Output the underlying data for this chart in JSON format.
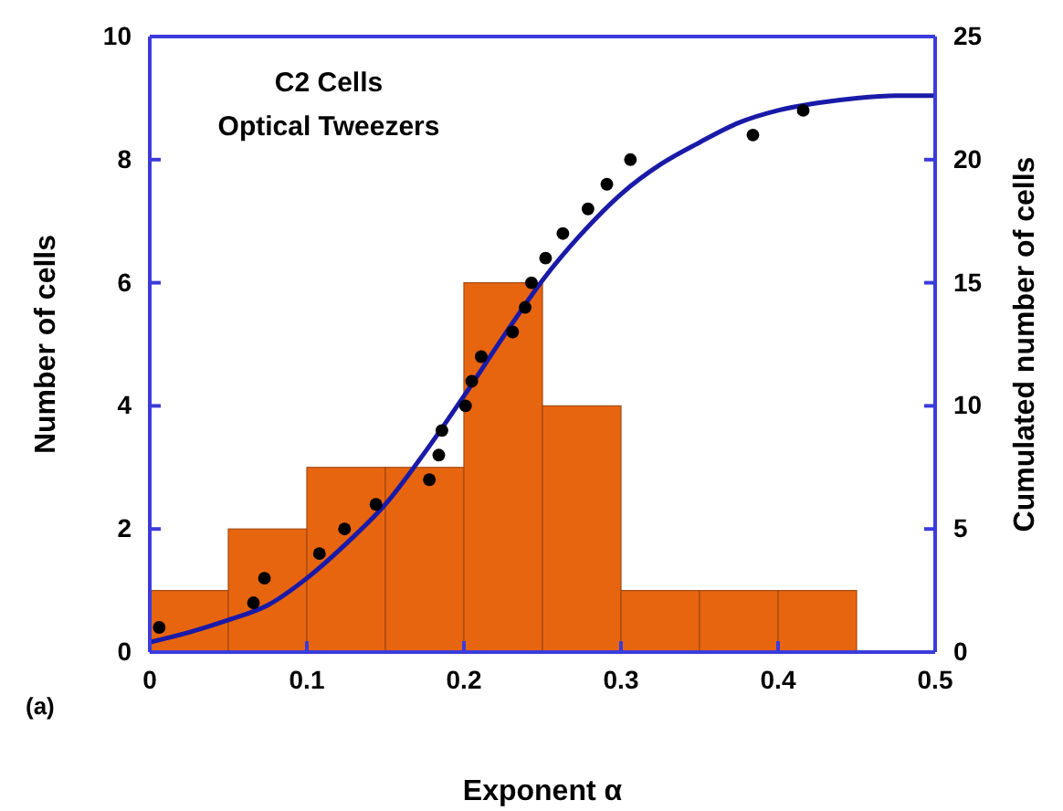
{
  "chart_data": {
    "type": "histogram",
    "xlabel": "Exponent α",
    "ylabel": "Number of cells",
    "y2label": "Cumulated number of cells",
    "annotations": [
      "C2 Cells",
      "Optical Tweezers",
      "(a)"
    ],
    "xlim": [
      0,
      0.5
    ],
    "xticks": [
      0,
      0.1,
      0.2,
      0.3,
      0.4,
      0.5
    ],
    "ylim": [
      0,
      10
    ],
    "yticks": [
      0,
      2,
      4,
      6,
      8,
      10
    ],
    "y2lim": [
      0,
      25
    ],
    "y2ticks": [
      0,
      5,
      10,
      15,
      20,
      25
    ],
    "series": [
      {
        "color": "#e8650f",
        "bins": [
          0,
          0.05,
          0.1,
          0.15,
          0.2,
          0.25,
          0.3,
          0.35,
          0.4,
          0.45
        ],
        "values": [
          1,
          2,
          3,
          3,
          6,
          4,
          1,
          1,
          1
        ]
      },
      {
        "type": "line",
        "axis": "y2",
        "color": "#1a1aa8",
        "x": [
          0,
          0.025,
          0.05,
          0.075,
          0.1,
          0.125,
          0.15,
          0.175,
          0.2,
          0.225,
          0.25,
          0.275,
          0.3,
          0.325,
          0.35,
          0.375,
          0.4,
          0.425,
          0.45,
          0.475,
          0.5
        ],
        "values": [
          0.4,
          0.8,
          1.3,
          1.9,
          3.0,
          4.4,
          6.0,
          8.1,
          10.4,
          12.8,
          15.1,
          17.0,
          18.6,
          19.8,
          20.7,
          21.5,
          22.0,
          22.3,
          22.5,
          22.6,
          22.6
        ]
      },
      {
        "type": "scatter",
        "axis": "y2",
        "color": "#000000",
        "marker": "circle",
        "x": [
          0.006,
          0.066,
          0.073,
          0.108,
          0.124,
          0.144,
          0.178,
          0.184,
          0.186,
          0.201,
          0.205,
          0.211,
          0.231,
          0.239,
          0.243,
          0.252,
          0.263,
          0.279,
          0.291,
          0.306,
          0.384,
          0.416
        ],
        "values": [
          1,
          2,
          3,
          4,
          5,
          6,
          7,
          8,
          9,
          10,
          11,
          12,
          13,
          14,
          15,
          16,
          17,
          18,
          19,
          20,
          21,
          22
        ]
      }
    ]
  }
}
